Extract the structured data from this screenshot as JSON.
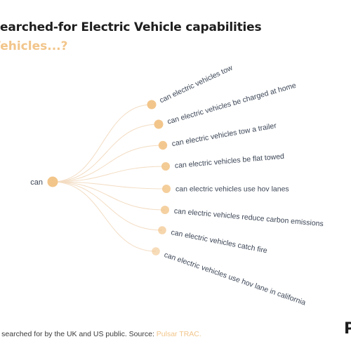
{
  "header": {
    "title": "Searched-for Electric Vehicle capabilities",
    "subtitle": "Vehicles...?",
    "subtitle_color": "#f2c58a"
  },
  "diagram": {
    "root": "can",
    "node_color": "#f2c58a",
    "link_color": "#f3dcc2",
    "branches": [
      "can electric vehicles tow",
      "can electric vehicles be charged at home",
      "can electric vehicles tow a trailer",
      "can electric vehicles be flat towed",
      "can electric vehicles use hov lanes",
      "can electric vehicles reduce carbon emissions",
      "can electric vehicles catch fire",
      "can electric vehicles use hov lane in california"
    ]
  },
  "footer": {
    "text": "s searched for by the UK and US public. Source: ",
    "source": "Pulsar TRAC."
  },
  "logo": {
    "text": "P"
  }
}
